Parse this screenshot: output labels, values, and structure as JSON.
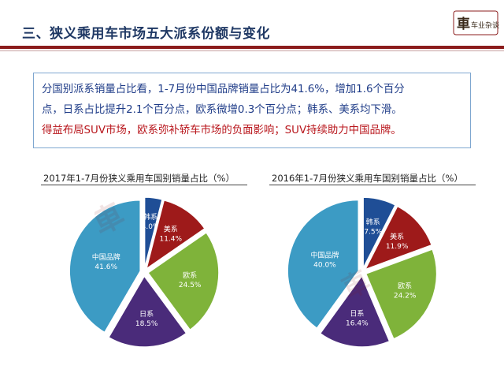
{
  "header": {
    "title": "三、狭义乘用车市场五大派系份额与变化",
    "logo_text": "车业杂谈"
  },
  "summary": {
    "line1": "分国别派系销量占比看，1-7月份中国品牌销量占比为41.6%，增加1.6个百分",
    "line2": "点，日系占比提升2.1个百分点，欧系微增0.3个百分点；韩系、美系均下滑。",
    "line3": "得益布局SUV市场，欧系弥补轿车市场的负面影响；SUV持续助力中国品牌。"
  },
  "colors": {
    "korean": "#1f4e96",
    "american": "#9e1a1a",
    "european": "#7fb33a",
    "japanese": "#4a2b7a",
    "chinese": "#3c9bc4"
  },
  "chart_data": [
    {
      "type": "pie",
      "title": "2017年1-7月份狭义乘用车国别销量占比（%）",
      "slices": [
        {
          "label": "韩系",
          "value": 4.0,
          "display": "4.0%",
          "color": "#1f4e96"
        },
        {
          "label": "美系",
          "value": 11.4,
          "display": "11.4%",
          "color": "#9e1a1a"
        },
        {
          "label": "欧系",
          "value": 24.5,
          "display": "24.5%",
          "color": "#7fb33a"
        },
        {
          "label": "日系",
          "value": 18.5,
          "display": "18.5%",
          "color": "#4a2b7a"
        },
        {
          "label": "中国品牌",
          "value": 41.6,
          "display": "41.6%",
          "color": "#3c9bc4"
        }
      ]
    },
    {
      "type": "pie",
      "title": "2016年1-7月份狭义乘用车国别销量占比（%）",
      "slices": [
        {
          "label": "韩系",
          "value": 7.5,
          "display": "7.5%",
          "color": "#1f4e96"
        },
        {
          "label": "美系",
          "value": 11.9,
          "display": "11.9%",
          "color": "#9e1a1a"
        },
        {
          "label": "欧系",
          "value": 24.2,
          "display": "24.2%",
          "color": "#7fb33a"
        },
        {
          "label": "日系",
          "value": 16.4,
          "display": "16.4%",
          "color": "#4a2b7a"
        },
        {
          "label": "中国品牌",
          "value": 40.0,
          "display": "40.0%",
          "color": "#3c9bc4"
        }
      ]
    }
  ]
}
